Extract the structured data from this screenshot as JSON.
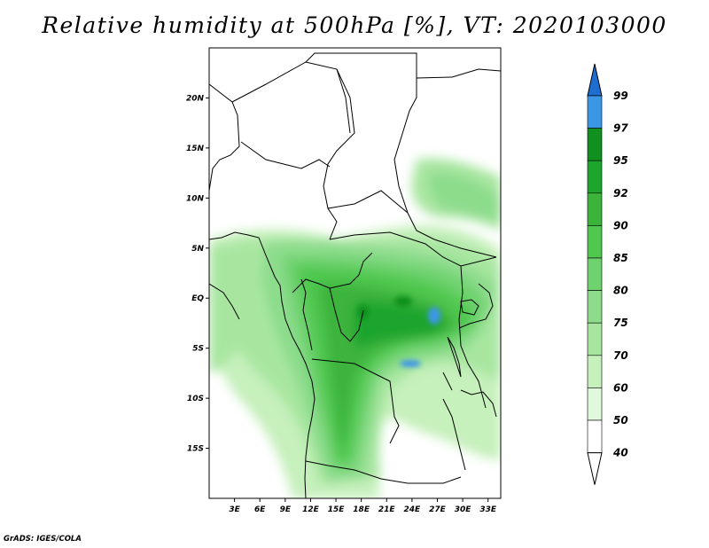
{
  "title": "Relative humidity at 500hPa [%], VT: 2020103000",
  "credit": "GrADS: IGES/COLA",
  "map": {
    "lon_range": [
      0,
      34.5
    ],
    "lat_range": [
      -20,
      25
    ],
    "lat_ticks": [
      {
        "value": 20,
        "label": "20N"
      },
      {
        "value": 15,
        "label": "15N"
      },
      {
        "value": 10,
        "label": "10N"
      },
      {
        "value": 5,
        "label": "5N"
      },
      {
        "value": 0,
        "label": "EQ"
      },
      {
        "value": -5,
        "label": "5S"
      },
      {
        "value": -10,
        "label": "10S"
      },
      {
        "value": -15,
        "label": "15S"
      }
    ],
    "lon_ticks": [
      {
        "value": 3,
        "label": "3E"
      },
      {
        "value": 6,
        "label": "6E"
      },
      {
        "value": 9,
        "label": "9E"
      },
      {
        "value": 12,
        "label": "12E"
      },
      {
        "value": 15,
        "label": "15E"
      },
      {
        "value": 18,
        "label": "18E"
      },
      {
        "value": 21,
        "label": "21E"
      },
      {
        "value": 24,
        "label": "24E"
      },
      {
        "value": 27,
        "label": "27E"
      },
      {
        "value": 30,
        "label": "30E"
      },
      {
        "value": 33,
        "label": "33E"
      }
    ]
  },
  "colorbar": {
    "levels": [
      "99",
      "97",
      "95",
      "92",
      "90",
      "85",
      "80",
      "75",
      "70",
      "60",
      "50",
      "40"
    ],
    "colors": [
      "#1e6ed2",
      "#3c96e6",
      "#10901e",
      "#1ea52d",
      "#3cb43c",
      "#50c850",
      "#6ed26e",
      "#8cdc8c",
      "#a8e6a0",
      "#c6f0bc",
      "#e0f8dc",
      "#ffffff"
    ]
  },
  "colors": {
    "coast": "#000000",
    "frame": "#000000"
  }
}
